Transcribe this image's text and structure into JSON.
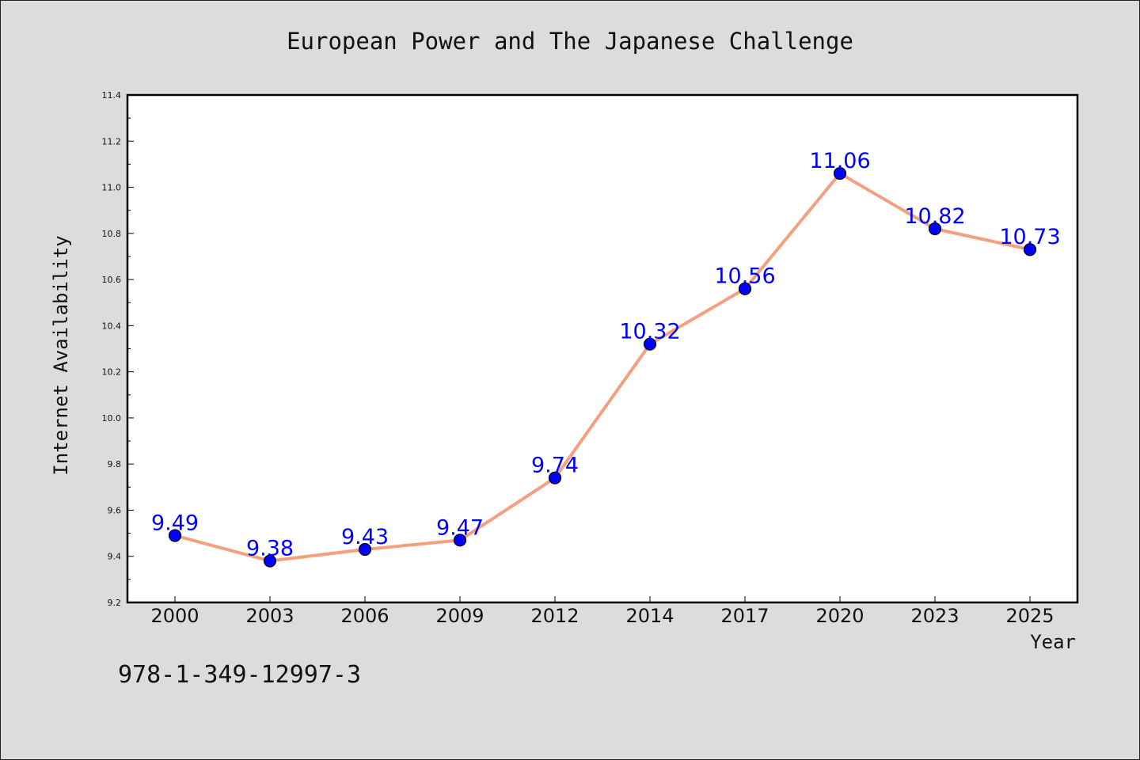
{
  "chart_data": {
    "type": "line",
    "title": "European Power and The Japanese Challenge",
    "xlabel": "Year",
    "ylabel": "Internet Availability",
    "categories": [
      "2000",
      "2003",
      "2006",
      "2009",
      "2012",
      "2014",
      "2017",
      "2020",
      "2023",
      "2025"
    ],
    "series": [
      {
        "values": [
          9.49,
          9.38,
          9.43,
          9.47,
          9.74,
          10.32,
          10.56,
          11.06,
          10.82,
          10.73
        ]
      }
    ],
    "data_labels": [
      "9.49",
      "9.38",
      "9.43",
      "9.47",
      "9.74",
      "10.32",
      "10.56",
      "11.06",
      "10.82",
      "10.73"
    ],
    "ylim": [
      9.2,
      11.4
    ],
    "yticks": [
      "9.2",
      "9.4",
      "9.6",
      "9.8",
      "10.0",
      "10.2",
      "10.4",
      "10.6",
      "10.8",
      "11.0",
      "11.2",
      "11.4"
    ],
    "grid": false,
    "colors": {
      "line": "#f4a07e",
      "marker": "#0000ff",
      "label": "#0000ff",
      "plot_background": "#ffffff",
      "figure_background": "#dcdcdc"
    }
  },
  "footnote": "978-1-349-12997-3"
}
